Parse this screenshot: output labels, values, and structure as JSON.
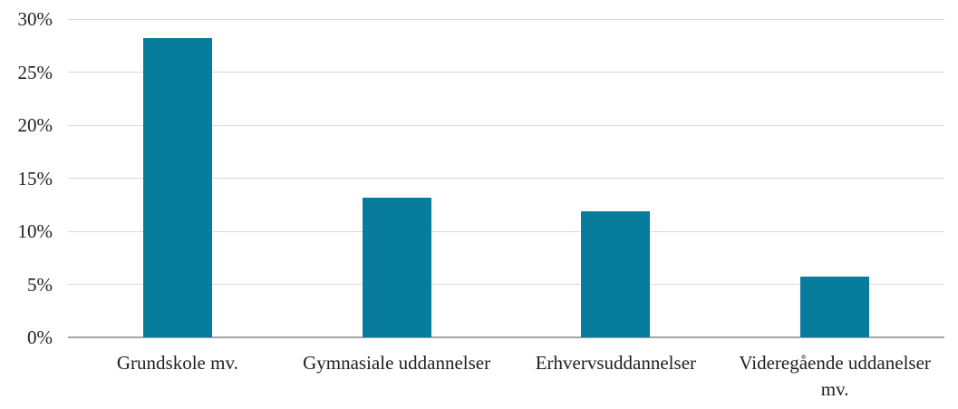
{
  "chart_data": {
    "type": "bar",
    "categories": [
      "Grundskole mv.",
      "Gymnasiale uddannelser",
      "Erhvervsuddannelser",
      "Videregående uddanelser mv."
    ],
    "values": [
      28.2,
      13.2,
      11.9,
      5.7
    ],
    "value_unit": "%",
    "title": "",
    "xlabel": "",
    "ylabel": "",
    "ylim": [
      0,
      30
    ],
    "yticks": [
      0,
      5,
      10,
      15,
      20,
      25,
      30
    ],
    "ytick_labels": [
      "0%",
      "5%",
      "10%",
      "15%",
      "20%",
      "25%",
      "30%"
    ],
    "grid": true,
    "legend_position": "none"
  },
  "colors": {
    "bar": "#077c9d",
    "gridline": "#d9d9d9",
    "axis_line": "#a6a6a6",
    "text": "#1f1f1f",
    "background": "#ffffff"
  }
}
